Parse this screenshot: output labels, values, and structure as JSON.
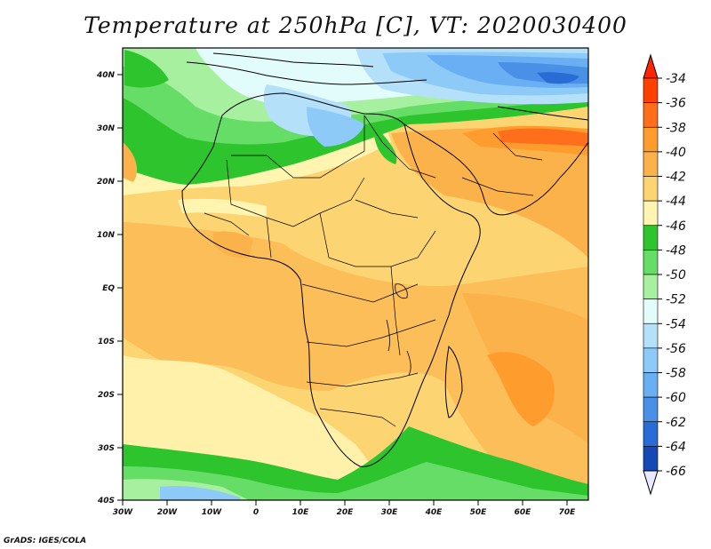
{
  "title": "Temperature at 250hPa [C], VT: 2020030400",
  "credit": "GrADS: IGES/COLA",
  "map": {
    "projection": "lat-lon",
    "lon_range": [
      -30,
      75
    ],
    "lat_range": [
      -40,
      45
    ],
    "lon_ticks": [
      "30W",
      "20W",
      "10W",
      "0",
      "10E",
      "20E",
      "30E",
      "40E",
      "50E",
      "60E",
      "70E"
    ],
    "lat_ticks": [
      "40N",
      "30N",
      "20N",
      "10N",
      "EQ",
      "10S",
      "20S",
      "30S",
      "40S"
    ],
    "variable": "Temperature at 250hPa",
    "units": "C",
    "valid_time": "2020030400",
    "features": [
      "coastlines",
      "country-borders",
      "lakes"
    ]
  },
  "colorbar": {
    "labels": [
      "-34",
      "-36",
      "-38",
      "-40",
      "-42",
      "-44",
      "-46",
      "-48",
      "-50",
      "-52",
      "-54",
      "-56",
      "-58",
      "-60",
      "-62",
      "-64",
      "-66"
    ],
    "colors": [
      "#ff4000",
      "#ff6e1a",
      "#ff9c2e",
      "#fbb24a",
      "#fcd472",
      "#fff4b0",
      "#2ec42e",
      "#66dd66",
      "#a6f0a0",
      "#e2fbfb",
      "#b4e0fa",
      "#8ecaf8",
      "#6aaff4",
      "#4a90e6",
      "#2a6cd6",
      "#1448b4",
      "#081878"
    ],
    "top_color": "#ff2400",
    "bottom_color": "#e8e8ff"
  }
}
